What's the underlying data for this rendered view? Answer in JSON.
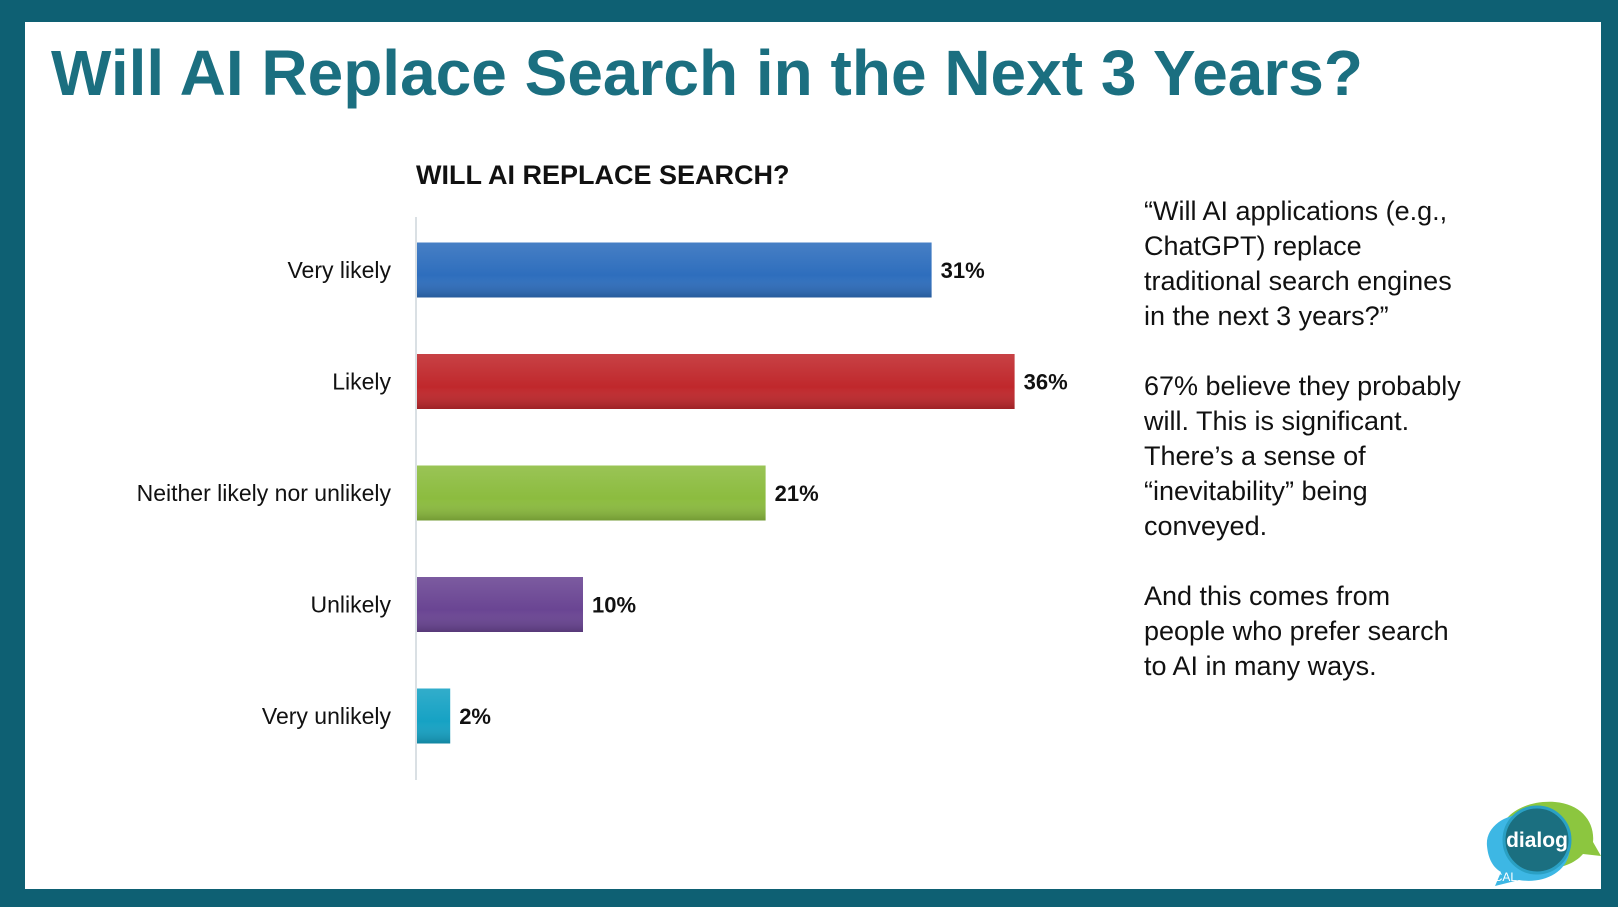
{
  "slide": {
    "title": "Will AI Replace Search in the Next 3 Years?"
  },
  "chart_data": {
    "type": "bar",
    "orientation": "horizontal",
    "title": "WILL AI REPLACE SEARCH?",
    "categories": [
      "Very likely",
      "Likely",
      "Neither likely nor unlikely",
      "Unlikely",
      "Very unlikely"
    ],
    "values": [
      31,
      36,
      21,
      10,
      2
    ],
    "value_labels": [
      "31%",
      "36%",
      "21%",
      "10%",
      "2%"
    ],
    "value_unit": "%",
    "colors": [
      "#2e6ebd",
      "#c0282c",
      "#8cbc3f",
      "#6a4593",
      "#16a2c4"
    ],
    "xlim": [
      0,
      40
    ],
    "grid": false,
    "legend": "none"
  },
  "side_text": {
    "paragraphs": [
      "“Will AI applications (e.g., ChatGPT) replace traditional search engines in the next 3 years?”",
      "67% believe they probably will. This is significant. There’s a sense of “inevitability” being conveyed.",
      "And this comes from people who prefer search to AI in many ways."
    ]
  },
  "logo": {
    "text": "dialog",
    "tagline": "AI meets LOCAL",
    "colors": {
      "bubble_green": "#8cc63f",
      "bubble_blue": "#3db7e4",
      "circle": "#1b6f80"
    }
  },
  "theme": {
    "frame": "#0e6073",
    "title_color": "#1b6f80"
  }
}
